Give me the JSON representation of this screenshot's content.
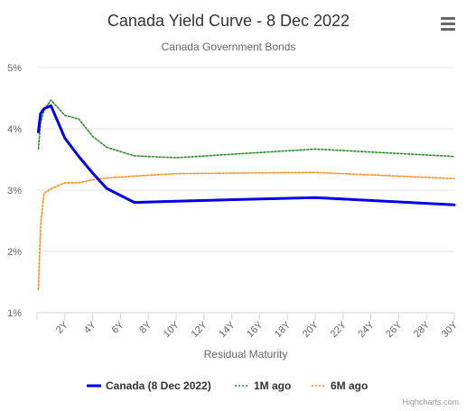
{
  "chart_data": {
    "type": "line",
    "title": "Canada Yield Curve - 8 Dec 2022",
    "subtitle": "Canada Government Bonds",
    "xlabel": "Residual Maturity",
    "ylabel": "",
    "x_ticks": [
      "2Y",
      "4Y",
      "6Y",
      "8Y",
      "10Y",
      "12Y",
      "14Y",
      "16Y",
      "18Y",
      "20Y",
      "22Y",
      "24Y",
      "26Y",
      "28Y",
      "30Y"
    ],
    "y_ticks": [
      "1%",
      "2%",
      "3%",
      "4%",
      "5%"
    ],
    "xlim": [
      0,
      30
    ],
    "ylim": [
      1,
      5
    ],
    "grid": true,
    "legend_placement": "bottom-center",
    "series": [
      {
        "name": "Canada (8 Dec 2022)",
        "color": "#0000e6",
        "style": "solid",
        "x": [
          0.1,
          0.25,
          0.5,
          1,
          2,
          3,
          4,
          5,
          7,
          10,
          20,
          30
        ],
        "values": [
          3.95,
          4.25,
          4.33,
          4.38,
          3.85,
          3.55,
          3.28,
          3.03,
          2.8,
          2.82,
          2.88,
          2.76
        ]
      },
      {
        "name": "1M ago",
        "color": "#2e8b2e",
        "style": "dotted",
        "x": [
          0.1,
          0.25,
          0.5,
          1,
          2,
          3,
          4,
          5,
          7,
          10,
          20,
          30
        ],
        "values": [
          3.67,
          4.1,
          4.3,
          4.47,
          4.22,
          4.16,
          3.88,
          3.7,
          3.56,
          3.53,
          3.67,
          3.55
        ]
      },
      {
        "name": "6M ago",
        "color": "#ff8c1a",
        "style": "dotted",
        "x": [
          0.1,
          0.25,
          0.5,
          1,
          2,
          3,
          4,
          5,
          7,
          10,
          20,
          30
        ],
        "values": [
          1.38,
          2.4,
          2.95,
          3.02,
          3.12,
          3.12,
          3.17,
          3.2,
          3.23,
          3.27,
          3.29,
          3.19
        ]
      }
    ]
  },
  "credits": "Highcharts.com",
  "menu_icon": "hamburger-menu-icon"
}
